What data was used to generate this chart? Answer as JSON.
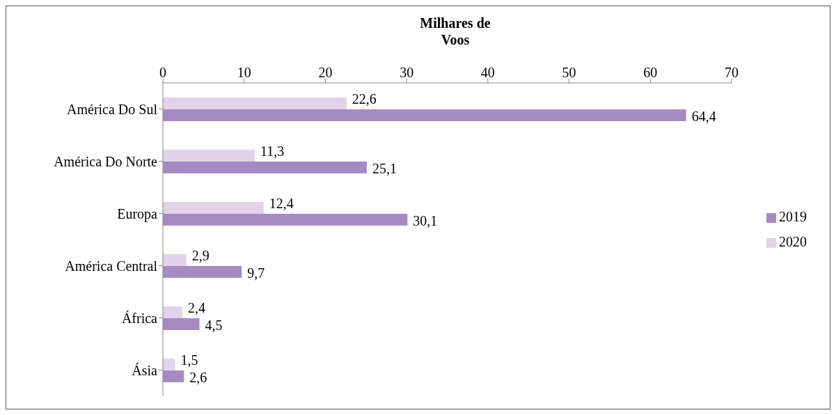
{
  "chart_data": {
    "type": "bar",
    "orientation": "horizontal",
    "xlabel": "Milhares de Voos",
    "categories": [
      "América Do Sul",
      "América Do Norte",
      "Europa",
      "América Central",
      "África",
      "Ásia"
    ],
    "series": [
      {
        "name": "2020",
        "color": "#e2d3ea",
        "values": [
          22.6,
          11.3,
          12.4,
          2.9,
          2.4,
          1.5
        ],
        "value_labels": [
          "22,6",
          "11,3",
          "12,4",
          "2,9",
          "2,4",
          "1,5"
        ]
      },
      {
        "name": "2019",
        "color": "#a68bc3",
        "values": [
          64.4,
          25.1,
          30.1,
          9.7,
          4.5,
          2.6
        ],
        "value_labels": [
          "64,4",
          "25,1",
          "30,1",
          "9,7",
          "4,5",
          "2,6"
        ]
      }
    ],
    "xlim": [
      0,
      70
    ],
    "xticks": [
      0,
      10,
      20,
      30,
      40,
      50,
      60,
      70
    ],
    "grid": false,
    "legend": "right"
  }
}
